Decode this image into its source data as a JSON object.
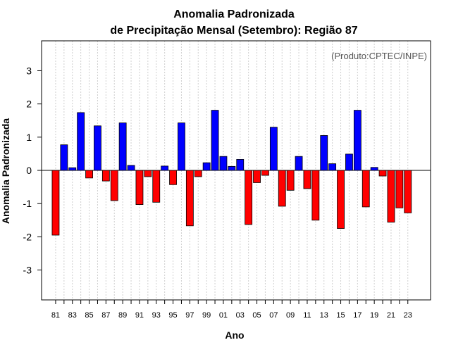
{
  "chart_data": {
    "type": "bar",
    "title_line1": "Anomalia Padronizada",
    "title_line2": "de Precipitação Mensal (Setembro): Região 87",
    "xlabel": "Ano",
    "ylabel": "Anomalia Padronizada",
    "credit": "(Produto:CPTEC/INPE)",
    "ylim": [
      -3.9,
      3.9
    ],
    "yticks": [
      -3,
      -2,
      -1,
      0,
      1,
      2,
      3
    ],
    "ytick_labels": [
      "-3",
      "-2",
      "-1",
      "0",
      "1",
      "2",
      "3"
    ],
    "grid": "vertical dotted",
    "categories": [
      "81",
      "82",
      "83",
      "84",
      "85",
      "86",
      "87",
      "88",
      "89",
      "90",
      "91",
      "92",
      "93",
      "94",
      "95",
      "96",
      "97",
      "98",
      "99",
      "00",
      "01",
      "02",
      "03",
      "04",
      "05",
      "06",
      "07",
      "08",
      "09",
      "10",
      "11",
      "12",
      "13",
      "14",
      "15",
      "16",
      "17",
      "18",
      "19",
      "20",
      "21",
      "22",
      "23"
    ],
    "xtick_labels": [
      "81",
      "83",
      "85",
      "87",
      "89",
      "91",
      "93",
      "95",
      "97",
      "99",
      "01",
      "03",
      "05",
      "07",
      "09",
      "11",
      "13",
      "15",
      "17",
      "19",
      "21",
      "23"
    ],
    "values": [
      -1.95,
      0.77,
      0.08,
      1.74,
      -0.23,
      1.34,
      -0.32,
      -0.91,
      1.43,
      0.15,
      -1.03,
      -0.19,
      -0.96,
      0.13,
      -0.43,
      1.43,
      -1.67,
      -0.19,
      0.23,
      1.81,
      0.42,
      0.12,
      0.33,
      -1.63,
      -0.37,
      -0.15,
      1.3,
      -1.08,
      -0.6,
      0.42,
      -0.55,
      -1.5,
      1.05,
      0.2,
      -1.75,
      0.49,
      1.81,
      -1.1,
      0.09,
      -0.17,
      -1.56,
      -1.13,
      -1.28
    ],
    "colors": {
      "positive": "#0000ff",
      "negative": "#ff0000",
      "outline": "#000000"
    }
  }
}
